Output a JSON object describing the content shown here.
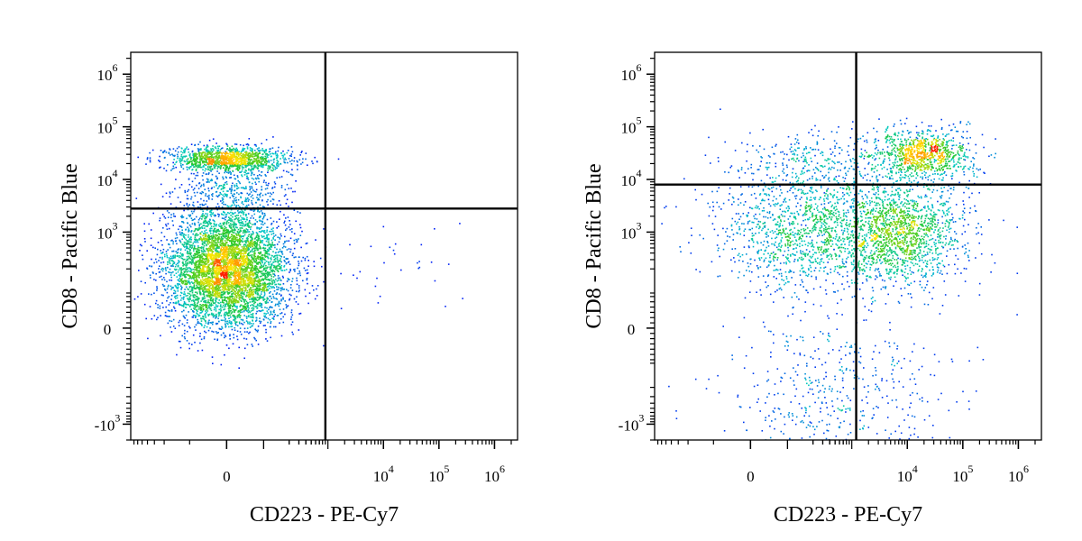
{
  "chart_data": [
    {
      "type": "scatter",
      "style": "flow-cytometry density dot plot",
      "xlabel": "CD223 - PE-Cy7",
      "ylabel": "CD8 - Pacific Blue",
      "xscale": "biexponential",
      "yscale": "biexponential",
      "xticks": [
        {
          "value": 0,
          "base": "0",
          "exp": ""
        },
        {
          "value": 10000,
          "base": "10",
          "exp": "4"
        },
        {
          "value": 100000,
          "base": "10",
          "exp": "5"
        },
        {
          "value": 1000000,
          "base": "10",
          "exp": "6"
        }
      ],
      "yticks": [
        {
          "value": -1000,
          "base": "-10",
          "exp": "3"
        },
        {
          "value": 0,
          "base": "0",
          "exp": ""
        },
        {
          "value": 1000,
          "base": "10",
          "exp": "3"
        },
        {
          "value": 10000,
          "base": "10",
          "exp": "4"
        },
        {
          "value": 100000,
          "base": "10",
          "exp": "5"
        },
        {
          "value": 1000000,
          "base": "10",
          "exp": "6"
        }
      ],
      "xlim": [
        -800,
        2600000
      ],
      "ylim": [
        -2000,
        2600000
      ],
      "quadrant_gate": {
        "x": 900,
        "y": 2800
      },
      "populations": [
        {
          "label": "CD8- CD223-",
          "x_center": 0,
          "y_center": 200,
          "relative_density": "very high"
        },
        {
          "label": "CD8+ CD223-",
          "x_center": 0,
          "y_center": 25000,
          "relative_density": "high"
        },
        {
          "label": "CD223+",
          "x_center": 6000,
          "y_center": 300,
          "relative_density": "very low"
        }
      ],
      "grid": false,
      "legend": "none",
      "colors": {
        "low": "#0000ff",
        "mid": "#00c8c8",
        "high": "#ff2000"
      }
    },
    {
      "type": "scatter",
      "style": "flow-cytometry density dot plot",
      "xlabel": "CD223 - PE-Cy7",
      "ylabel": "CD8 - Pacific Blue",
      "xscale": "biexponential",
      "yscale": "biexponential",
      "xticks": [
        {
          "value": 0,
          "base": "0",
          "exp": ""
        },
        {
          "value": 10000,
          "base": "10",
          "exp": "4"
        },
        {
          "value": 100000,
          "base": "10",
          "exp": "5"
        },
        {
          "value": 1000000,
          "base": "10",
          "exp": "6"
        }
      ],
      "yticks": [
        {
          "value": -1000,
          "base": "-10",
          "exp": "3"
        },
        {
          "value": 0,
          "base": "0",
          "exp": ""
        },
        {
          "value": 1000,
          "base": "10",
          "exp": "3"
        },
        {
          "value": 10000,
          "base": "10",
          "exp": "4"
        },
        {
          "value": 100000,
          "base": "10",
          "exp": "5"
        },
        {
          "value": 1000000,
          "base": "10",
          "exp": "6"
        }
      ],
      "xlim": [
        -800,
        2600000
      ],
      "ylim": [
        -2000,
        2600000
      ],
      "quadrant_gate": {
        "x": 1200,
        "y": 8000
      },
      "populations": [
        {
          "label": "CD8- CD223-",
          "x_center": 200,
          "y_center": 1000,
          "relative_density": "medium"
        },
        {
          "label": "CD8- CD223+",
          "x_center": 8000,
          "y_center": 1000,
          "relative_density": "medium"
        },
        {
          "label": "CD8+ CD223-",
          "x_center": 300,
          "y_center": 20000,
          "relative_density": "low"
        },
        {
          "label": "CD8+ CD223+",
          "x_center": 20000,
          "y_center": 30000,
          "relative_density": "medium"
        }
      ],
      "grid": false,
      "legend": "none",
      "colors": {
        "low": "#0000ff",
        "mid": "#00c8c8",
        "high": "#ff2000"
      }
    }
  ]
}
